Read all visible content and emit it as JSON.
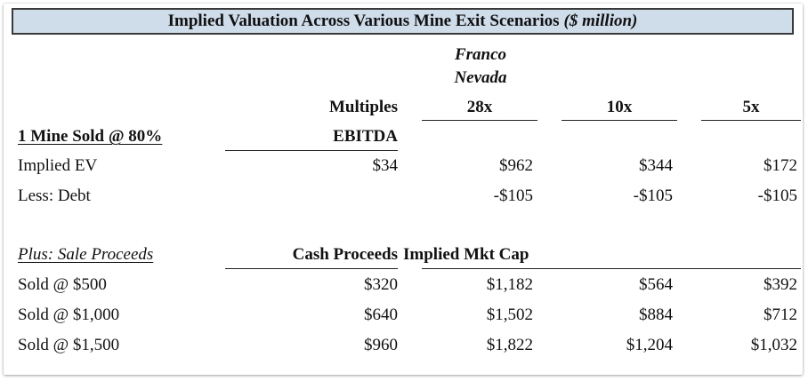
{
  "title": {
    "main": "Implied Valuation Across Various Mine Exit Scenarios",
    "unit": "($ million)"
  },
  "header": {
    "franco_line1": "Franco",
    "franco_line2": "Nevada",
    "multiples": "Multiples",
    "col_28x": "28x",
    "col_10x": "10x",
    "col_5x": "5x",
    "ebitda": "EBITDA"
  },
  "section1": {
    "title": "1 Mine Sold @ 80%",
    "rows": [
      {
        "label": "Implied EV",
        "ebitda": "$34",
        "v28": "$962",
        "v10": "$344",
        "v5": "$172"
      },
      {
        "label": "Less: Debt",
        "ebitda": "",
        "v28": "-$105",
        "v10": "-$105",
        "v5": "-$105"
      }
    ]
  },
  "section2": {
    "title": "Plus: Sale Proceeds",
    "cash_header": "Cash Proceeds",
    "mktcap_header": "Implied Mkt Cap",
    "rows": [
      {
        "label": "Sold @ $500",
        "cash": "$320",
        "v28": "$1,182",
        "v10": "$564",
        "v5": "$392"
      },
      {
        "label": "Sold @ $1,000",
        "cash": "$640",
        "v28": "$1,502",
        "v10": "$884",
        "v5": "$712"
      },
      {
        "label": "Sold @ $1,500",
        "cash": "$960",
        "v28": "$1,822",
        "v10": "$1,204",
        "v5": "$1,032"
      }
    ]
  }
}
